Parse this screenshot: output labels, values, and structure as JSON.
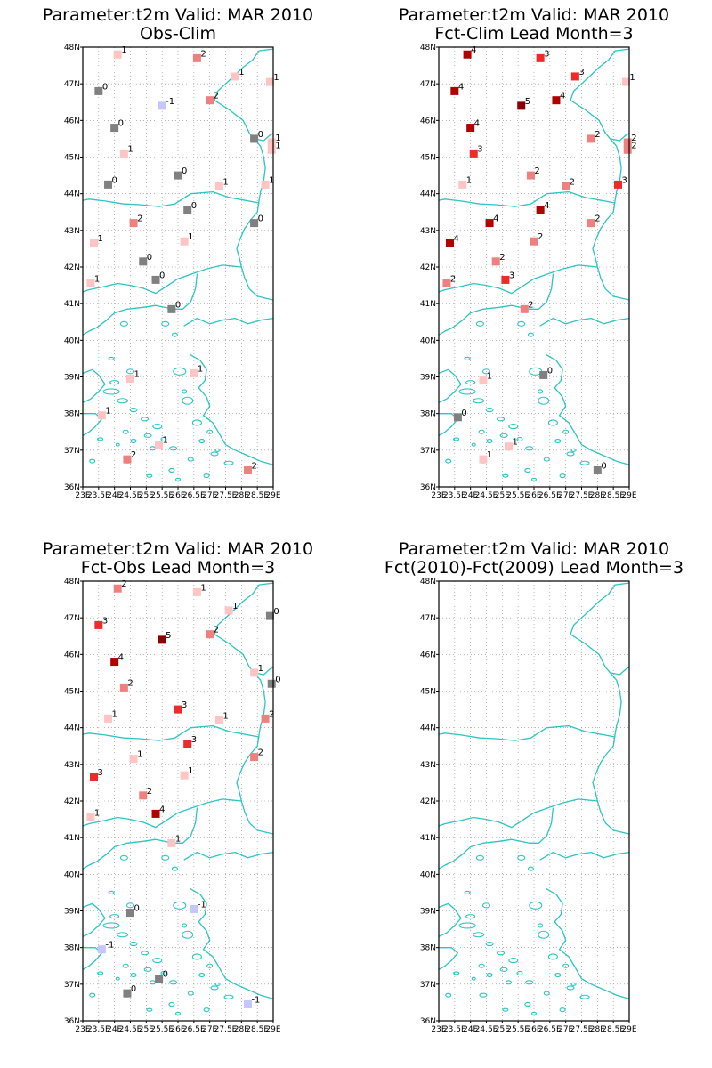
{
  "map": {
    "lon_range": [
      23,
      29
    ],
    "lat_range": [
      36,
      48
    ],
    "lon_ticks": [
      "23E",
      "23.5E",
      "24E",
      "24.5E",
      "25E",
      "25.5E",
      "26E",
      "26.5E",
      "27E",
      "27.5E",
      "28E",
      "28.5E",
      "29E"
    ],
    "lat_ticks": [
      "36N",
      "37N",
      "38N",
      "39N",
      "40N",
      "41N",
      "42N",
      "43N",
      "44N",
      "45N",
      "46N",
      "47N",
      "48N"
    ],
    "coast_color": "#2ec4c4",
    "grid": "dotted"
  },
  "color_scale": {
    "-1": "#c6c6ff",
    "0": "#808080",
    "1": "#ffc4c4",
    "2": "#f08080",
    "3": "#ee2a2a",
    "4": "#b20000",
    "5": "#8b0000"
  },
  "panels": [
    {
      "title": "Parameter:t2m Valid: MAR 2010",
      "subtitle": "Obs-Clim",
      "points": [
        {
          "lon": 24.1,
          "lat": 47.8,
          "value": 1
        },
        {
          "lon": 26.6,
          "lat": 47.7,
          "value": 2
        },
        {
          "lon": 27.8,
          "lat": 47.2,
          "value": 1
        },
        {
          "lon": 28.9,
          "lat": 47.05,
          "value": 1
        },
        {
          "lon": 23.5,
          "lat": 46.8,
          "value": 0
        },
        {
          "lon": 25.5,
          "lat": 46.4,
          "value": -1
        },
        {
          "lon": 27.0,
          "lat": 46.55,
          "value": 2
        },
        {
          "lon": 24.0,
          "lat": 45.8,
          "value": 0
        },
        {
          "lon": 28.4,
          "lat": 45.5,
          "value": 0
        },
        {
          "lon": 28.95,
          "lat": 45.4,
          "value": 1
        },
        {
          "lon": 24.3,
          "lat": 45.1,
          "value": 1
        },
        {
          "lon": 28.95,
          "lat": 45.2,
          "value": 1
        },
        {
          "lon": 23.8,
          "lat": 44.25,
          "value": 0
        },
        {
          "lon": 26.0,
          "lat": 44.5,
          "value": 0
        },
        {
          "lon": 27.3,
          "lat": 44.2,
          "value": 1
        },
        {
          "lon": 28.75,
          "lat": 44.25,
          "value": 1
        },
        {
          "lon": 26.3,
          "lat": 43.55,
          "value": 0
        },
        {
          "lon": 24.6,
          "lat": 43.2,
          "value": 2
        },
        {
          "lon": 28.4,
          "lat": 43.2,
          "value": 0
        },
        {
          "lon": 23.35,
          "lat": 42.65,
          "value": 1
        },
        {
          "lon": 26.2,
          "lat": 42.7,
          "value": 1
        },
        {
          "lon": 24.9,
          "lat": 42.15,
          "value": 0
        },
        {
          "lon": 23.25,
          "lat": 41.55,
          "value": 1
        },
        {
          "lon": 25.3,
          "lat": 41.65,
          "value": 0
        },
        {
          "lon": 25.8,
          "lat": 40.85,
          "value": 0
        },
        {
          "lon": 24.5,
          "lat": 38.95,
          "value": 1
        },
        {
          "lon": 26.5,
          "lat": 39.1,
          "value": 1
        },
        {
          "lon": 23.6,
          "lat": 37.95,
          "value": 1
        },
        {
          "lon": 25.4,
          "lat": 37.15,
          "value": 1
        },
        {
          "lon": 24.4,
          "lat": 36.75,
          "value": 2
        },
        {
          "lon": 28.2,
          "lat": 36.45,
          "value": 2
        }
      ]
    },
    {
      "title": "Parameter:t2m Valid: MAR 2010",
      "subtitle": "Fct-Clim Lead Month=3",
      "points": [
        {
          "lon": 23.9,
          "lat": 47.8,
          "value": 4
        },
        {
          "lon": 26.2,
          "lat": 47.7,
          "value": 3
        },
        {
          "lon": 27.3,
          "lat": 47.2,
          "value": 3
        },
        {
          "lon": 28.9,
          "lat": 47.05,
          "value": 1
        },
        {
          "lon": 23.5,
          "lat": 46.8,
          "value": 4
        },
        {
          "lon": 25.6,
          "lat": 46.4,
          "value": 5
        },
        {
          "lon": 26.7,
          "lat": 46.55,
          "value": 4
        },
        {
          "lon": 24.0,
          "lat": 45.8,
          "value": 4
        },
        {
          "lon": 27.8,
          "lat": 45.5,
          "value": 2
        },
        {
          "lon": 28.95,
          "lat": 45.4,
          "value": 2
        },
        {
          "lon": 24.1,
          "lat": 45.1,
          "value": 3
        },
        {
          "lon": 28.95,
          "lat": 45.2,
          "value": 2
        },
        {
          "lon": 23.75,
          "lat": 44.25,
          "value": 1
        },
        {
          "lon": 25.9,
          "lat": 44.5,
          "value": 2
        },
        {
          "lon": 27.0,
          "lat": 44.2,
          "value": 2
        },
        {
          "lon": 28.65,
          "lat": 44.25,
          "value": 3
        },
        {
          "lon": 26.2,
          "lat": 43.55,
          "value": 4
        },
        {
          "lon": 24.6,
          "lat": 43.2,
          "value": 4
        },
        {
          "lon": 27.8,
          "lat": 43.2,
          "value": 2
        },
        {
          "lon": 23.35,
          "lat": 42.65,
          "value": 4
        },
        {
          "lon": 26.0,
          "lat": 42.7,
          "value": 2
        },
        {
          "lon": 24.8,
          "lat": 42.15,
          "value": 2
        },
        {
          "lon": 23.25,
          "lat": 41.55,
          "value": 2
        },
        {
          "lon": 25.1,
          "lat": 41.65,
          "value": 3
        },
        {
          "lon": 25.7,
          "lat": 40.85,
          "value": 2
        },
        {
          "lon": 24.4,
          "lat": 38.9,
          "value": 1
        },
        {
          "lon": 26.3,
          "lat": 39.05,
          "value": 0
        },
        {
          "lon": 23.6,
          "lat": 37.9,
          "value": 0
        },
        {
          "lon": 25.2,
          "lat": 37.1,
          "value": 1
        },
        {
          "lon": 24.4,
          "lat": 36.75,
          "value": 1
        },
        {
          "lon": 28.0,
          "lat": 36.45,
          "value": 0
        }
      ]
    },
    {
      "title": "Parameter:t2m Valid: MAR 2010",
      "subtitle": "Fct-Obs Lead Month=3",
      "points": [
        {
          "lon": 24.1,
          "lat": 47.8,
          "value": 2
        },
        {
          "lon": 26.6,
          "lat": 47.7,
          "value": 1
        },
        {
          "lon": 27.6,
          "lat": 47.2,
          "value": 1
        },
        {
          "lon": 28.9,
          "lat": 47.05,
          "value": 0
        },
        {
          "lon": 23.5,
          "lat": 46.8,
          "value": 3
        },
        {
          "lon": 25.5,
          "lat": 46.4,
          "value": 5
        },
        {
          "lon": 27.0,
          "lat": 46.55,
          "value": 2
        },
        {
          "lon": 24.0,
          "lat": 45.8,
          "value": 4
        },
        {
          "lon": 28.4,
          "lat": 45.5,
          "value": 1
        },
        {
          "lon": 28.95,
          "lat": 45.2,
          "value": 0
        },
        {
          "lon": 24.3,
          "lat": 45.1,
          "value": 2
        },
        {
          "lon": 23.8,
          "lat": 44.25,
          "value": 1
        },
        {
          "lon": 26.0,
          "lat": 44.5,
          "value": 3
        },
        {
          "lon": 27.3,
          "lat": 44.2,
          "value": 1
        },
        {
          "lon": 28.75,
          "lat": 44.25,
          "value": 2
        },
        {
          "lon": 26.3,
          "lat": 43.55,
          "value": 3
        },
        {
          "lon": 24.6,
          "lat": 43.15,
          "value": 1
        },
        {
          "lon": 28.4,
          "lat": 43.2,
          "value": 2
        },
        {
          "lon": 23.35,
          "lat": 42.65,
          "value": 3
        },
        {
          "lon": 26.2,
          "lat": 42.7,
          "value": 1
        },
        {
          "lon": 24.9,
          "lat": 42.15,
          "value": 2
        },
        {
          "lon": 23.25,
          "lat": 41.55,
          "value": 1
        },
        {
          "lon": 25.3,
          "lat": 41.65,
          "value": 4
        },
        {
          "lon": 25.8,
          "lat": 40.85,
          "value": 1
        },
        {
          "lon": 24.5,
          "lat": 38.95,
          "value": 0
        },
        {
          "lon": 26.5,
          "lat": 39.05,
          "value": -1
        },
        {
          "lon": 23.6,
          "lat": 37.95,
          "value": -1
        },
        {
          "lon": 25.4,
          "lat": 37.15,
          "value": 0
        },
        {
          "lon": 24.4,
          "lat": 36.75,
          "value": 0
        },
        {
          "lon": 28.2,
          "lat": 36.45,
          "value": -1
        }
      ]
    },
    {
      "title": "Parameter:t2m Valid: MAR 2010",
      "subtitle": "Fct(2010)-Fct(2009) Lead Month=3",
      "points": []
    }
  ]
}
